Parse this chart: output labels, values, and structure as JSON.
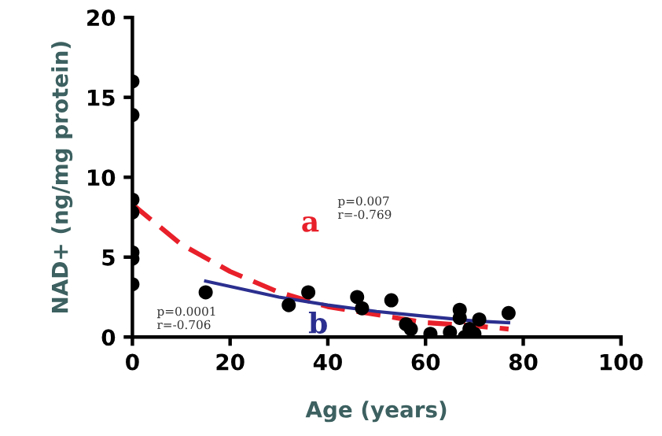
{
  "chart_data": {
    "type": "scatter",
    "xlabel": "Age (years)",
    "ylabel": "NAD+ (ng/mg protein)",
    "xlim": [
      0,
      100
    ],
    "xticks": [
      0,
      20,
      40,
      60,
      80,
      100
    ],
    "ylim": [
      0,
      20
    ],
    "yticks": [
      0,
      5,
      10,
      15,
      20
    ],
    "grid": false,
    "series": [
      {
        "color": "#000000",
        "marker": "circle",
        "x": [
          0,
          0,
          0,
          0,
          0,
          0,
          0,
          15,
          32,
          36,
          46,
          47,
          53,
          56,
          57,
          61,
          65,
          67,
          67,
          68,
          69,
          70,
          71,
          77
        ],
        "values": [
          16,
          13.9,
          8.6,
          7.8,
          5.3,
          4.9,
          3.3,
          2.8,
          2.0,
          2.8,
          2.5,
          1.8,
          2.3,
          0.8,
          0.5,
          0.2,
          0.3,
          1.7,
          1.2,
          0,
          0.5,
          0.2,
          1.1,
          1.5
        ]
      },
      {
        "type": "line",
        "name": "a",
        "color": "#e8202a",
        "line_style": "dashed",
        "x": [
          0,
          10,
          20,
          30,
          40,
          50,
          60,
          70,
          77
        ],
        "values": [
          8.3,
          5.8,
          4.1,
          2.8,
          1.9,
          1.4,
          0.9,
          0.7,
          0.5
        ]
      },
      {
        "type": "line",
        "name": "b",
        "color": "#2b2f8f",
        "line_style": "solid",
        "x": [
          15,
          30,
          40,
          50,
          60,
          70,
          77
        ],
        "values": [
          3.5,
          2.5,
          2.0,
          1.6,
          1.3,
          1.0,
          0.9
        ]
      }
    ],
    "annotations": [
      "p=0.007\nr=-0.769",
      "p=0.0001\nr=-0.706"
    ]
  }
}
